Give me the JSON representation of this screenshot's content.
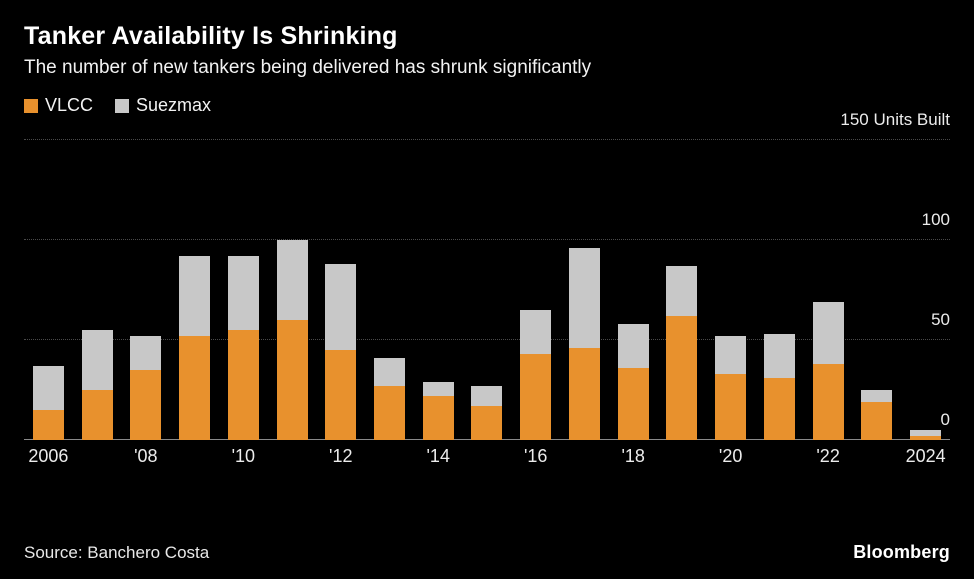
{
  "header": {
    "title": "Tanker Availability Is Shrinking",
    "subtitle": "The number of new tankers being delivered has shrunk significantly"
  },
  "legend": {
    "items": [
      {
        "label": "VLCC",
        "color": "#E8912D"
      },
      {
        "label": "Suezmax",
        "color": "#C8C8C8"
      }
    ]
  },
  "footer": {
    "source": "Source: Banchero Costa",
    "brand": "Bloomberg"
  },
  "colors": {
    "background": "#000000",
    "vlcc": "#E8912D",
    "suezmax": "#C8C8C8",
    "gridline": "#4a4a4a",
    "baseline": "#8a8a8a"
  },
  "chart_data": {
    "type": "bar",
    "stacked": true,
    "title": "Tanker Availability Is Shrinking",
    "subtitle": "The number of new tankers being delivered has shrunk significantly",
    "ylabel": "Units Built",
    "ylim": [
      0,
      150
    ],
    "grid": true,
    "legend_position": "top-left",
    "x": [
      2006,
      2007,
      2008,
      2009,
      2010,
      2011,
      2012,
      2013,
      2014,
      2015,
      2016,
      2017,
      2018,
      2019,
      2020,
      2021,
      2022,
      2023,
      2024
    ],
    "xtick_labels": [
      "2006",
      "",
      "'08",
      "",
      "'10",
      "",
      "'12",
      "",
      "'14",
      "",
      "'16",
      "",
      "'18",
      "",
      "'20",
      "",
      "'22",
      "",
      "2024"
    ],
    "series": [
      {
        "name": "VLCC",
        "color": "#E8912D",
        "values": [
          15,
          25,
          35,
          52,
          55,
          60,
          45,
          27,
          22,
          17,
          43,
          46,
          36,
          62,
          33,
          31,
          38,
          19,
          2
        ]
      },
      {
        "name": "Suezmax",
        "color": "#C8C8C8",
        "values": [
          22,
          30,
          17,
          40,
          37,
          40,
          43,
          14,
          7,
          10,
          22,
          50,
          22,
          25,
          19,
          22,
          31,
          6,
          3
        ]
      }
    ],
    "yticks": [
      {
        "value": 0,
        "label": "0"
      },
      {
        "value": 50,
        "label": "50"
      },
      {
        "value": 100,
        "label": "100"
      },
      {
        "value": 150,
        "label": "150 Units Built"
      }
    ]
  }
}
